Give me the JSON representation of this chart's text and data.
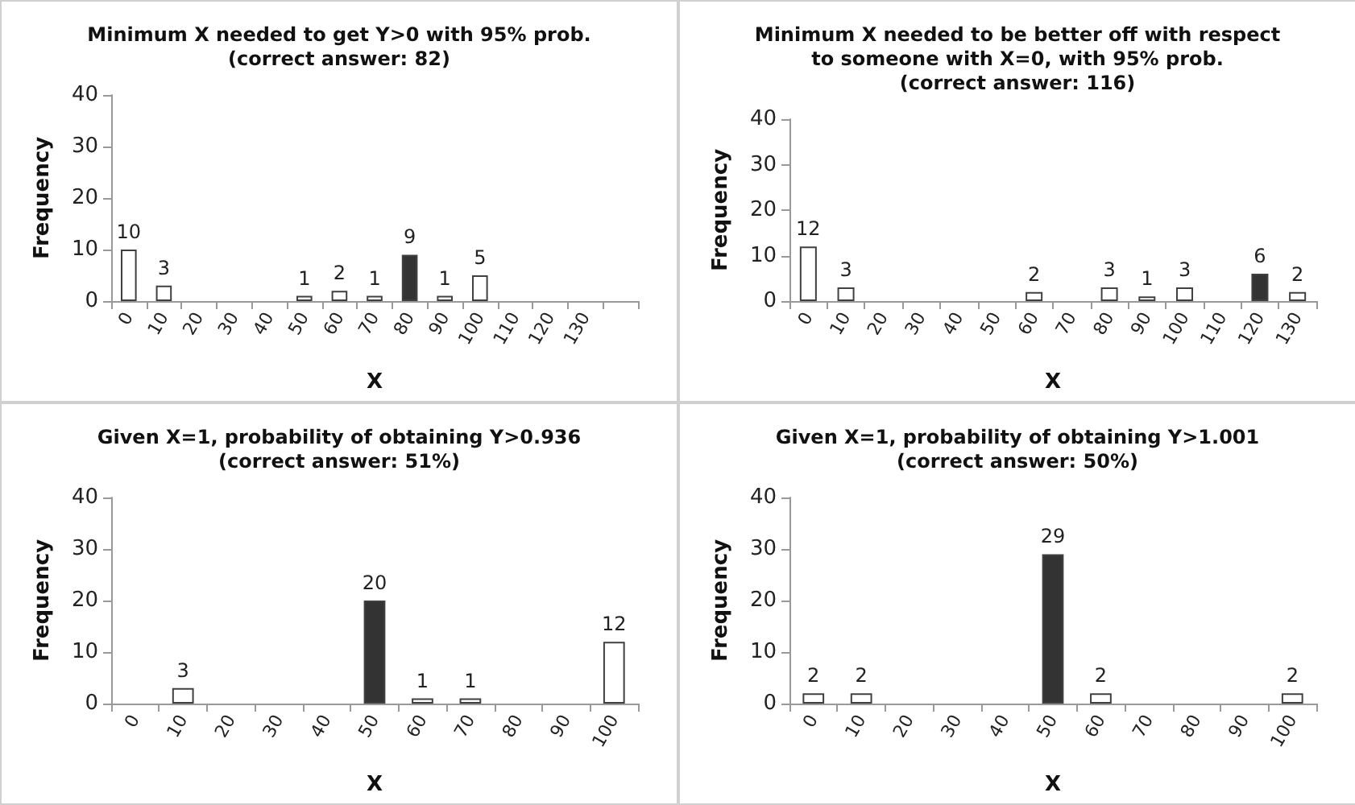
{
  "chart_data": [
    {
      "type": "bar",
      "title": "Minimum X needed to get Y>0 with 95% prob.\n(correct answer: 82)",
      "xlabel": "X",
      "ylabel": "Frequency",
      "categories": [
        "0",
        "10",
        "20",
        "30",
        "40",
        "50",
        "60",
        "70",
        "80",
        "90",
        "100",
        "110",
        "120",
        "130",
        null
      ],
      "values": [
        10,
        3,
        null,
        null,
        null,
        1,
        2,
        1,
        9,
        1,
        5,
        null,
        null,
        null,
        null
      ],
      "colors": [
        "#ffffff",
        "#ffffff",
        "#ffffff",
        "#ffffff",
        "#ffffff",
        "#ffffff",
        "#ffffff",
        "#ffffff",
        "#333333",
        "#ffffff",
        "#ffffff",
        "#ffffff",
        "#ffffff",
        "#ffffff",
        "#ffffff"
      ],
      "ylim": [
        0,
        40
      ],
      "yticks": [
        0,
        10,
        20,
        30,
        40
      ],
      "data_labels": true
    },
    {
      "type": "bar",
      "title": "Minimum X needed to be better off with respect\nto someone with X=0, with 95% prob.\n(correct answer: 116)",
      "xlabel": "X",
      "ylabel": "Frequency",
      "categories": [
        "0",
        "10",
        "20",
        "30",
        "40",
        "50",
        "60",
        "70",
        "80",
        "90",
        "100",
        "110",
        "120",
        "130"
      ],
      "values": [
        12,
        3,
        null,
        null,
        null,
        null,
        2,
        null,
        3,
        1,
        3,
        null,
        6,
        2
      ],
      "colors": [
        "#ffffff",
        "#ffffff",
        "#ffffff",
        "#ffffff",
        "#ffffff",
        "#ffffff",
        "#ffffff",
        "#ffffff",
        "#ffffff",
        "#ffffff",
        "#ffffff",
        "#ffffff",
        "#333333",
        "#ffffff"
      ],
      "ylim": [
        0,
        40
      ],
      "yticks": [
        0,
        10,
        20,
        30,
        40
      ],
      "data_labels": true
    },
    {
      "type": "bar",
      "title": "Given X=1, probability of obtaining Y>0.936\n(correct answer: 51%)",
      "xlabel": "X",
      "ylabel": "Frequency",
      "categories": [
        "0",
        "10",
        "20",
        "30",
        "40",
        "50",
        "60",
        "70",
        "80",
        "90",
        "100"
      ],
      "values": [
        null,
        3,
        null,
        null,
        null,
        20,
        1,
        1,
        null,
        null,
        12
      ],
      "colors": [
        "#ffffff",
        "#ffffff",
        "#ffffff",
        "#ffffff",
        "#ffffff",
        "#333333",
        "#ffffff",
        "#ffffff",
        "#ffffff",
        "#ffffff",
        "#ffffff"
      ],
      "ylim": [
        0,
        40
      ],
      "yticks": [
        0,
        10,
        20,
        30,
        40
      ],
      "data_labels": true
    },
    {
      "type": "bar",
      "title": "Given X=1, probability of obtaining Y>1.001\n(correct answer: 50%)",
      "xlabel": "X",
      "ylabel": "Frequency",
      "categories": [
        "0",
        "10",
        "20",
        "30",
        "40",
        "50",
        "60",
        "70",
        "80",
        "90",
        "100"
      ],
      "values": [
        2,
        2,
        null,
        null,
        null,
        29,
        2,
        null,
        null,
        null,
        2
      ],
      "colors": [
        "#ffffff",
        "#ffffff",
        "#ffffff",
        "#ffffff",
        "#ffffff",
        "#333333",
        "#ffffff",
        "#ffffff",
        "#ffffff",
        "#ffffff",
        "#ffffff"
      ],
      "ylim": [
        0,
        40
      ],
      "yticks": [
        0,
        10,
        20,
        30,
        40
      ],
      "data_labels": true
    }
  ]
}
